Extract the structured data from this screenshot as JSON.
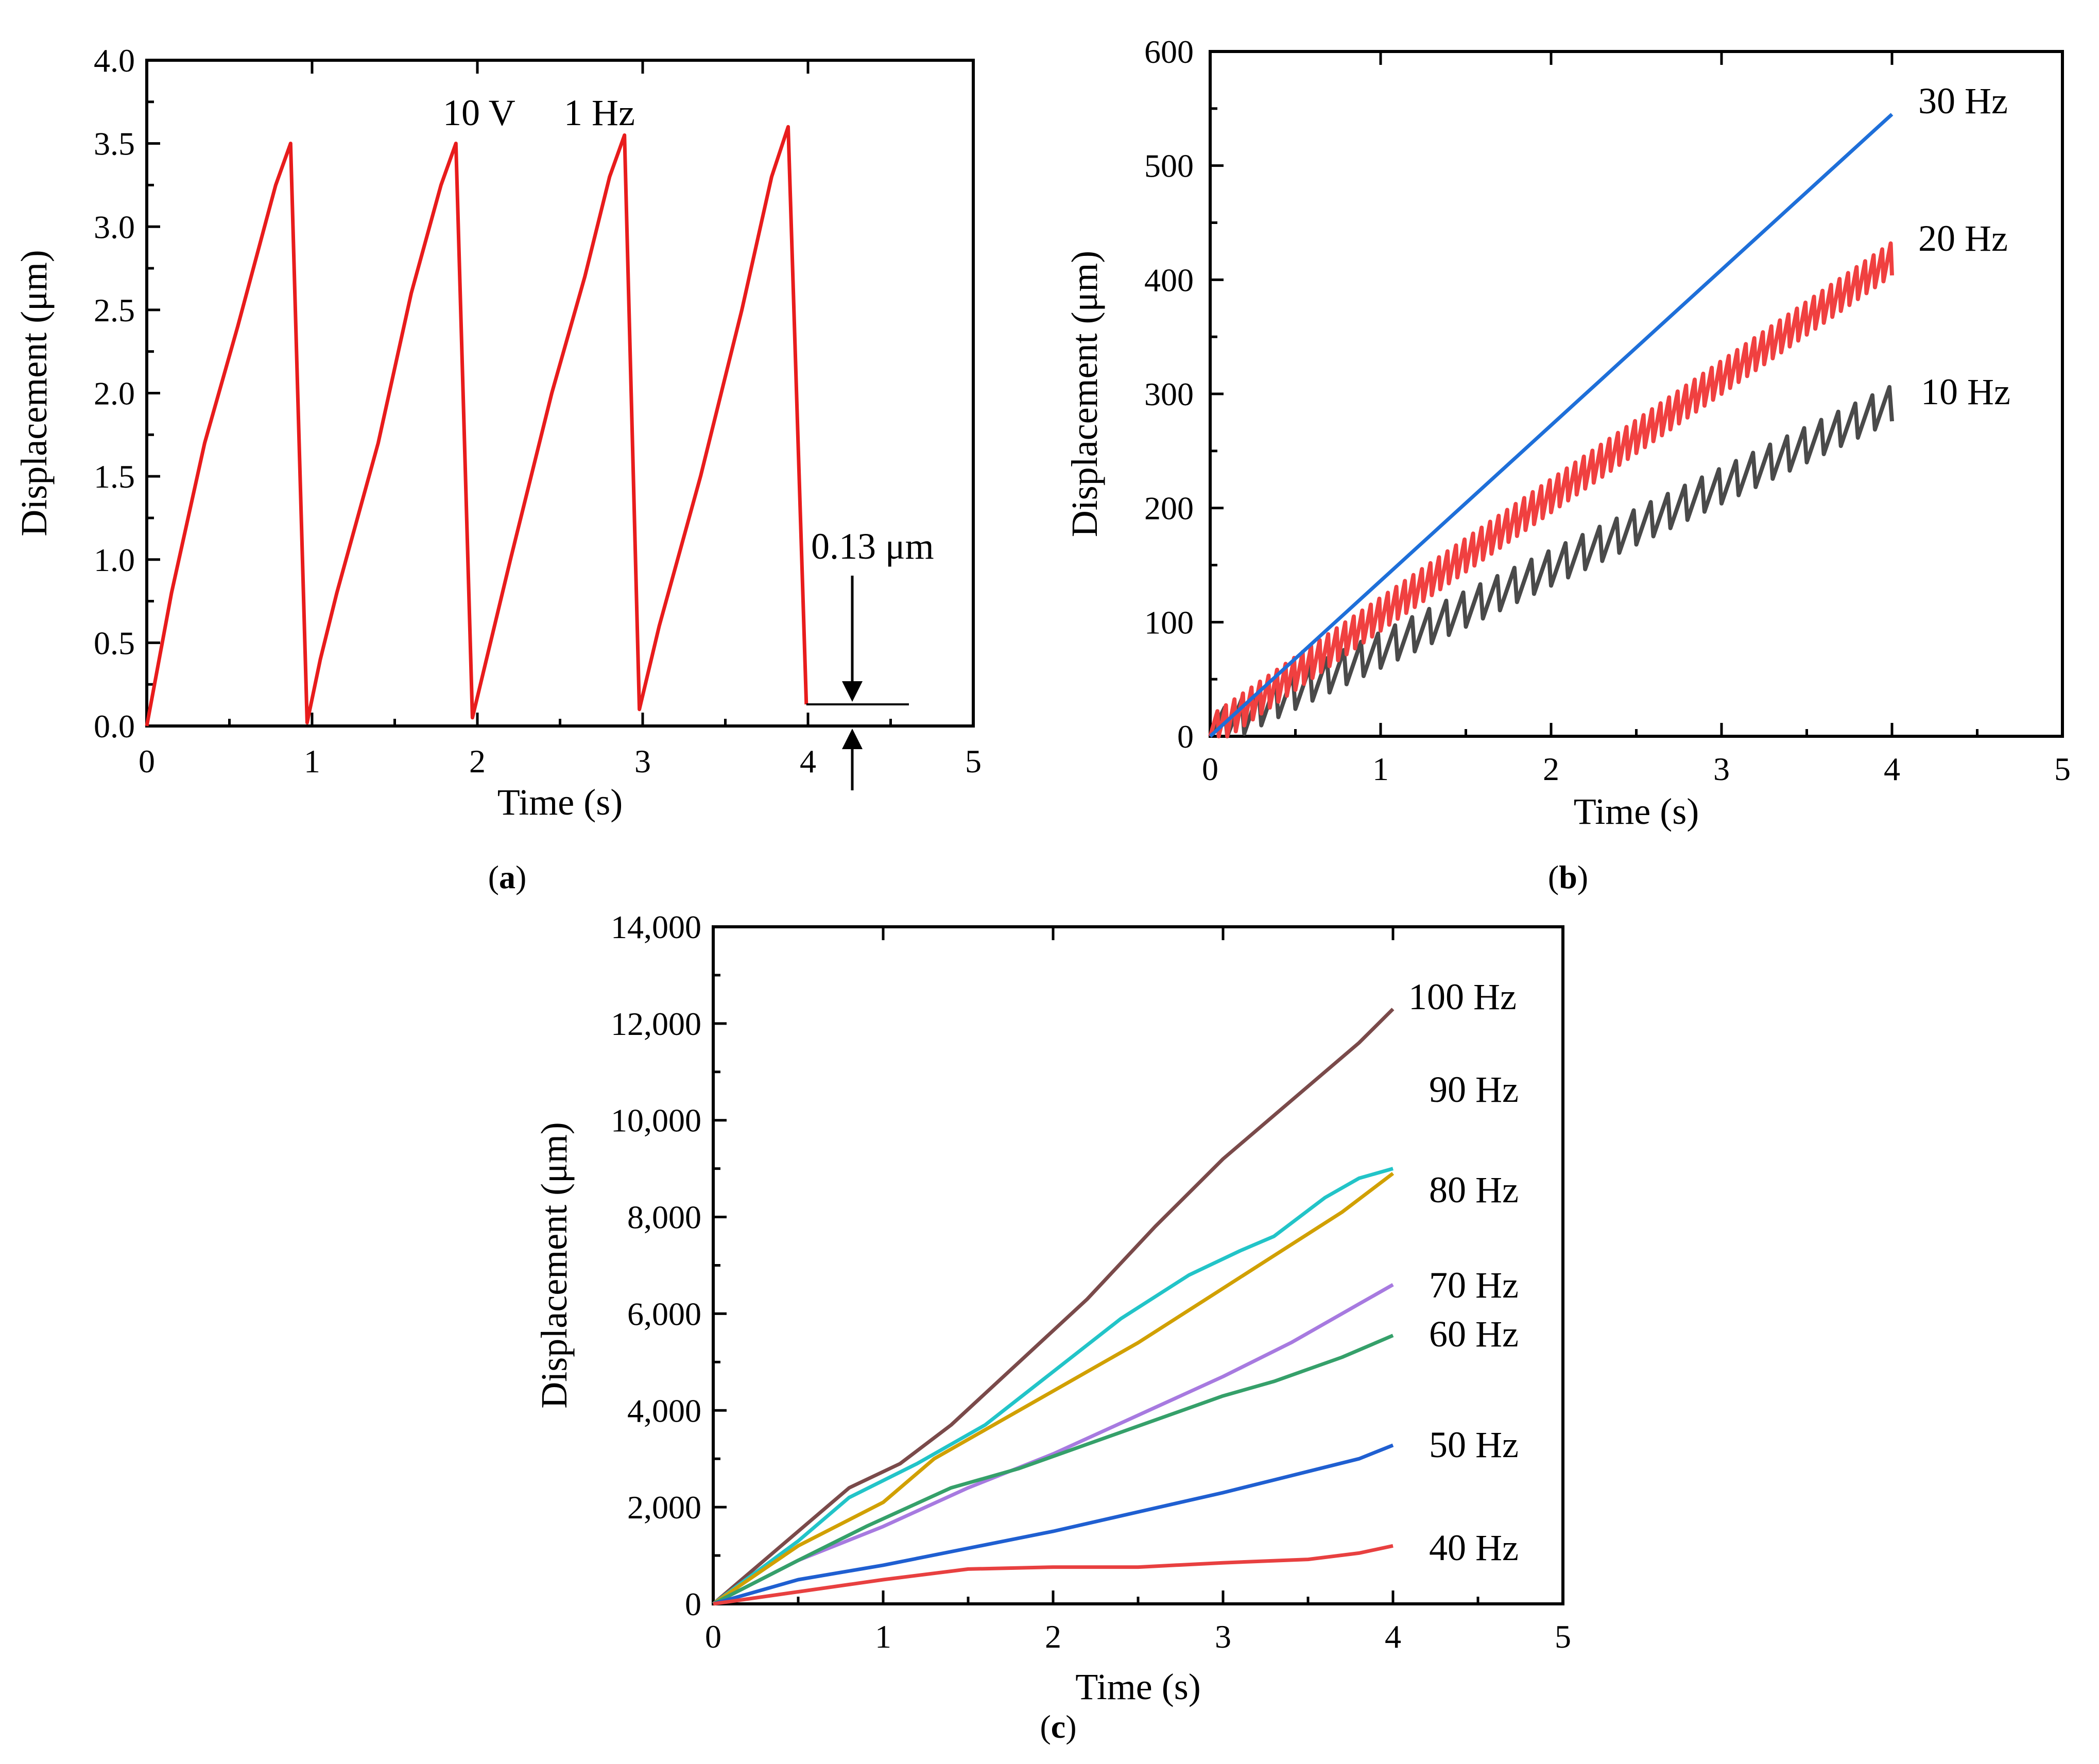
{
  "chart_data": [
    {
      "id": "a",
      "type": "line",
      "caption": {
        "open": "(",
        "letter": "a",
        "close": ")"
      },
      "xlabel": "Time (s)",
      "ylabel": "Displacement (μm)",
      "xlim": [
        0,
        5
      ],
      "ylim": [
        0,
        4.0
      ],
      "xticks": [
        "0",
        "1",
        "2",
        "3",
        "4",
        "5"
      ],
      "yticks": [
        "0.0",
        "0.5",
        "1.0",
        "1.5",
        "2.0",
        "2.5",
        "3.0",
        "3.5",
        "4.0"
      ],
      "annotations": [
        "10 V",
        "1 Hz",
        "0.13 μm"
      ],
      "series": [
        {
          "name": "10 V 1 Hz",
          "color": "#e81c1c",
          "points": [
            [
              0,
              0
            ],
            [
              0.15,
              0.8
            ],
            [
              0.35,
              1.7
            ],
            [
              0.55,
              2.4
            ],
            [
              0.78,
              3.25
            ],
            [
              0.87,
              3.5
            ],
            [
              0.97,
              0.02
            ],
            [
              1.05,
              0.4
            ],
            [
              1.15,
              0.8
            ],
            [
              1.4,
              1.7
            ],
            [
              1.6,
              2.6
            ],
            [
              1.78,
              3.25
            ],
            [
              1.87,
              3.5
            ],
            [
              1.97,
              0.05
            ],
            [
              2.2,
              1.0
            ],
            [
              2.45,
              2.0
            ],
            [
              2.65,
              2.7
            ],
            [
              2.8,
              3.3
            ],
            [
              2.89,
              3.55
            ],
            [
              2.98,
              0.1
            ],
            [
              3.1,
              0.6
            ],
            [
              3.35,
              1.5
            ],
            [
              3.6,
              2.5
            ],
            [
              3.78,
              3.3
            ],
            [
              3.88,
              3.6
            ],
            [
              3.99,
              0.13
            ]
          ]
        }
      ]
    },
    {
      "id": "b",
      "type": "line",
      "caption": {
        "open": "(",
        "letter": "b",
        "close": ")"
      },
      "xlabel": "Time (s)",
      "ylabel": "Displacement (μm)",
      "xlim": [
        0,
        5
      ],
      "ylim": [
        0,
        600
      ],
      "xticks": [
        "0",
        "1",
        "2",
        "3",
        "4",
        "5"
      ],
      "yticks": [
        "0",
        "100",
        "200",
        "300",
        "400",
        "500",
        "600"
      ],
      "series": [
        {
          "name": "10 Hz",
          "color": "#4a4a4a",
          "cycles_per_s": 10,
          "end_value": 288,
          "ripple": 30
        },
        {
          "name": "20 Hz",
          "color": "#f04040",
          "cycles_per_s": 20,
          "end_value": 415,
          "ripple": 28
        },
        {
          "name": "30 Hz",
          "color": "#1e6fd9",
          "cycles_per_s": 30,
          "end_value": 545,
          "ripple": 0
        }
      ]
    },
    {
      "id": "c",
      "type": "line",
      "caption": {
        "open": "(",
        "letter": "c",
        "close": ")"
      },
      "xlabel": "Time (s)",
      "ylabel": "Displacement (μm)",
      "xlim": [
        0,
        5
      ],
      "ylim": [
        0,
        14000
      ],
      "xticks": [
        "0",
        "1",
        "2",
        "3",
        "4",
        "5"
      ],
      "yticks": [
        "0",
        "2,000",
        "4,000",
        "6,000",
        "8,000",
        "10,000",
        "12,000",
        "14,000"
      ],
      "series": [
        {
          "name": "100 Hz",
          "color": "#7a4a4a",
          "x": [
            0,
            0.5,
            0.8,
            1.1,
            1.4,
            1.8,
            2.2,
            2.6,
            3.0,
            3.4,
            3.8,
            4.0
          ],
          "y": [
            0,
            1500,
            2400,
            2900,
            3700,
            5000,
            6300,
            7800,
            9200,
            10400,
            11600,
            12300
          ]
        },
        {
          "name": "90 Hz",
          "color": "#22c4c8",
          "x": [
            0,
            0.5,
            0.8,
            1.2,
            1.6,
            2.0,
            2.4,
            2.8,
            3.1,
            3.3,
            3.6,
            3.8,
            4.0
          ],
          "y": [
            0,
            1300,
            2200,
            2900,
            3700,
            4800,
            5900,
            6800,
            7300,
            7600,
            8400,
            8800,
            9000
          ]
        },
        {
          "name": "80 Hz",
          "color": "#d1a000",
          "x": [
            0,
            0.5,
            1.0,
            1.3,
            1.7,
            2.1,
            2.5,
            2.9,
            3.3,
            3.7,
            4.0
          ],
          "y": [
            0,
            1200,
            2100,
            3000,
            3800,
            4600,
            5400,
            6300,
            7200,
            8100,
            8900
          ]
        },
        {
          "name": "70 Hz",
          "color": "#a77ae0",
          "x": [
            0,
            0.5,
            1.0,
            1.5,
            2.0,
            2.5,
            3.0,
            3.4,
            3.8,
            4.0
          ],
          "y": [
            0,
            900,
            1600,
            2400,
            3100,
            3900,
            4700,
            5400,
            6200,
            6600
          ]
        },
        {
          "name": "60 Hz",
          "color": "#35a06a",
          "x": [
            0,
            0.5,
            0.9,
            1.4,
            1.8,
            2.2,
            2.6,
            3.0,
            3.3,
            3.7,
            4.0
          ],
          "y": [
            0,
            900,
            1600,
            2400,
            2800,
            3300,
            3800,
            4300,
            4600,
            5100,
            5550
          ]
        },
        {
          "name": "50 Hz",
          "color": "#1f5fd1",
          "x": [
            0,
            0.5,
            1.0,
            1.5,
            2.0,
            2.5,
            3.0,
            3.4,
            3.8,
            4.0
          ],
          "y": [
            0,
            500,
            800,
            1150,
            1500,
            1900,
            2300,
            2650,
            3000,
            3280
          ]
        },
        {
          "name": "40 Hz",
          "color": "#e84040",
          "x": [
            0,
            0.5,
            1.0,
            1.5,
            2.0,
            2.5,
            3.0,
            3.5,
            3.8,
            4.0
          ],
          "y": [
            0,
            250,
            500,
            720,
            760,
            760,
            850,
            920,
            1050,
            1200
          ]
        }
      ]
    }
  ]
}
